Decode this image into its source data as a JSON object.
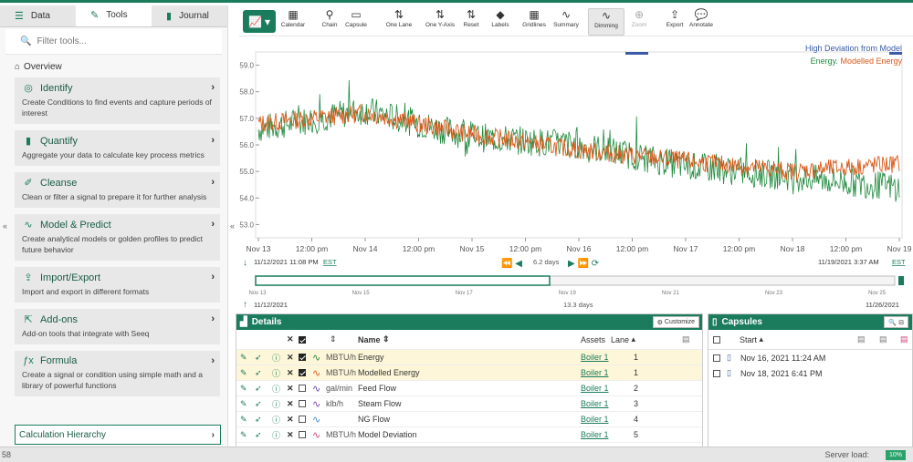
{
  "left_tabs": [
    {
      "label": "Data",
      "icon": "database-icon"
    },
    {
      "label": "Tools",
      "icon": "wrench-icon"
    },
    {
      "label": "Journal",
      "icon": "book-icon"
    }
  ],
  "filter_placeholder": "Filter tools...",
  "overview_label": "Overview",
  "tool_cards": [
    {
      "title": "Identify",
      "desc": "Create Conditions to find events and capture periods of interest",
      "icon": "magnify-icon"
    },
    {
      "title": "Quantify",
      "desc": "Aggregate your data to calculate key process metrics",
      "icon": "bar-chart-icon"
    },
    {
      "title": "Cleanse",
      "desc": "Clean or filter a signal to prepare it for further analysis",
      "icon": "broom-icon"
    },
    {
      "title": "Model & Predict",
      "desc": "Create analytical models or golden profiles to predict future behavior",
      "icon": "line-chart-icon"
    },
    {
      "title": "Import/Export",
      "desc": "Import and export in different formats",
      "icon": "export-icon"
    },
    {
      "title": "Add-ons",
      "desc": "Add-on tools that integrate with Seeq",
      "icon": "external-link-icon"
    },
    {
      "title": "Formula",
      "desc": "Create a signal or condition using simple math and a library of powerful functions",
      "icon": "fx-icon"
    }
  ],
  "calc_hierarchy": "Calculation Hierarchy",
  "toolbar": [
    {
      "label": "Calendar",
      "glyph": "▦"
    },
    {
      "label": "Chain",
      "glyph": "⚲"
    },
    {
      "label": "Capsule",
      "glyph": "▭"
    },
    {
      "label": "One Lane",
      "glyph": "⇅"
    },
    {
      "label": "One Y-Axis",
      "glyph": "⇅"
    },
    {
      "label": "Reset",
      "glyph": "⇅"
    },
    {
      "label": "Labels",
      "glyph": "◆"
    },
    {
      "label": "Gridlines",
      "glyph": "▦"
    },
    {
      "label": "Summary",
      "glyph": "∿"
    },
    {
      "label": "Dimming",
      "glyph": "∿"
    },
    {
      "label": "Zoom",
      "glyph": "⊕"
    },
    {
      "label": "Export",
      "glyph": "⇪"
    },
    {
      "label": "Annotate",
      "glyph": "💬"
    }
  ],
  "chart": {
    "legend1": "High Deviation from Model",
    "legend2a": "Energy.",
    "legend2b": "Modelled Energy",
    "colors": {
      "energy": "#1f8a3e",
      "modelled": "#d85a1a",
      "deviation": "#3b5ba8",
      "accent": "#1a7c5c"
    },
    "yticks": [
      "59.0",
      "58.0",
      "57.0",
      "56.0",
      "55.0",
      "54.0",
      "53.0"
    ],
    "xticks": [
      "Nov 13",
      "12:00 pm",
      "Nov 14",
      "12:00 pm",
      "Nov 15",
      "12:00 pm",
      "Nov 16",
      "12:00 pm",
      "Nov 17",
      "12:00 pm",
      "Nov 18",
      "12:00 pm",
      "Nov 19"
    ],
    "range_start": "11/12/2021 11:08 PM",
    "range_end": "11/19/2021 3:37 AM",
    "tz": "EST",
    "duration": "6.2 days",
    "nav_ticks": [
      "Nov 13",
      "Nov 15",
      "Nov 17",
      "Nov 19",
      "Nov 21",
      "Nov 23",
      "Nov 25"
    ],
    "nav_start": "11/12/2021",
    "nav_end": "11/26/2021",
    "nav_duration": "13.3 days"
  },
  "chart_data": {
    "type": "line",
    "x": [
      "Nov 13",
      "Nov 14",
      "Nov 15",
      "Nov 16",
      "Nov 17",
      "Nov 18",
      "Nov 19"
    ],
    "series": [
      {
        "name": "Energy",
        "values": [
          56.6,
          57.3,
          56.3,
          56.0,
          55.2,
          54.8,
          54.4
        ]
      },
      {
        "name": "Modelled Energy",
        "values": [
          56.8,
          57.2,
          56.4,
          55.8,
          55.4,
          55.0,
          55.3
        ]
      }
    ],
    "ylim": [
      52.5,
      59.5
    ]
  },
  "details": {
    "title": "Details",
    "customize": "Customize",
    "col_name": "Name",
    "col_assets": "Assets",
    "col_lane": "Lane",
    "rows": [
      {
        "unit": "MBTU/h",
        "name": "Energy",
        "asset": "Boiler 1",
        "lane": "1",
        "checked": true,
        "color": "#1f8a3e",
        "sel": true
      },
      {
        "unit": "MBTU/h",
        "name": "Modelled Energy",
        "asset": "Boiler 1",
        "lane": "1",
        "checked": true,
        "color": "#d85a1a",
        "sel": true
      },
      {
        "unit": "gal/min",
        "name": "Feed Flow",
        "asset": "Boiler 1",
        "lane": "2",
        "checked": false,
        "color": "#6a3fb0",
        "sel": false
      },
      {
        "unit": "klb/h",
        "name": "Steam Flow",
        "asset": "Boiler 1",
        "lane": "3",
        "checked": false,
        "color": "#7a3fb0",
        "sel": false
      },
      {
        "unit": "",
        "name": "NG Flow",
        "asset": "Boiler 1",
        "lane": "4",
        "checked": false,
        "color": "#3a8ad6",
        "sel": false
      },
      {
        "unit": "MBTU/h",
        "name": "Model Deviation",
        "asset": "Boiler 1",
        "lane": "5",
        "checked": false,
        "color": "#d6407a",
        "sel": false
      }
    ]
  },
  "capsules": {
    "title": "Capsules",
    "col_start": "Start",
    "rows": [
      "Nov 16, 2021 11:24 AM",
      "Nov 18, 2021 6:41 PM"
    ]
  },
  "status": {
    "left": "58",
    "server_label": "Server load:",
    "server_value": "10%"
  }
}
